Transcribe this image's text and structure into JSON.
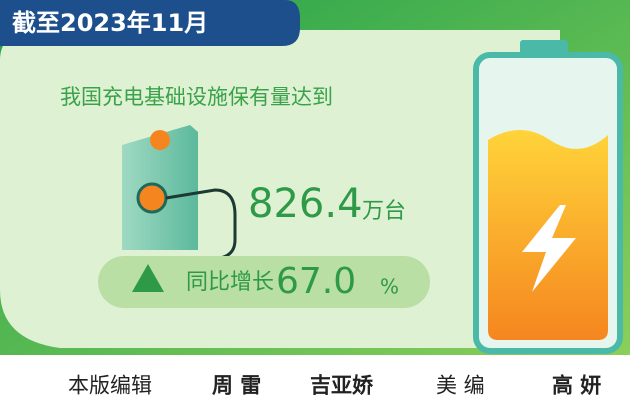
{
  "header": {
    "date": "截至2023年11月"
  },
  "headline": "我国充电基础设施保有量达到",
  "total": {
    "value": "826.4",
    "unit": "万台"
  },
  "growth": {
    "label": "同比增长",
    "value": "67.0",
    "unit": "%"
  },
  "credits": {
    "editor_label": "本版编辑",
    "editors": [
      "周 雷",
      "吉亚娇"
    ],
    "art_label": "美 编",
    "art_editor": "高 妍"
  }
}
